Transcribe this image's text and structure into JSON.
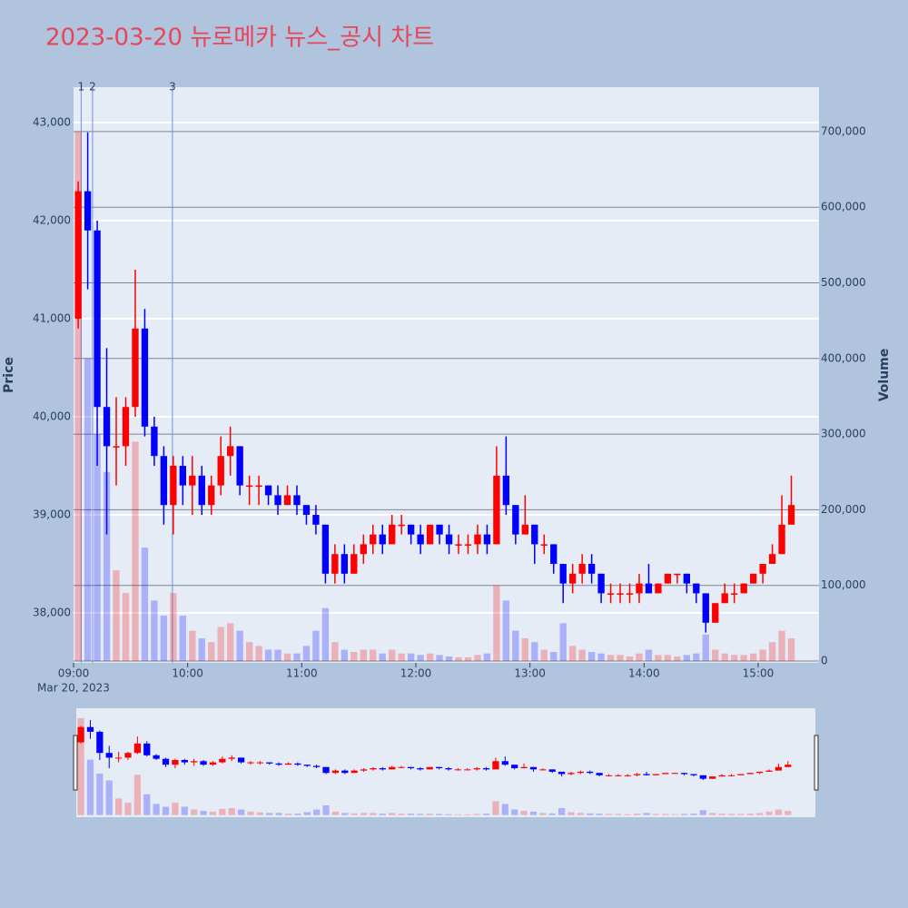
{
  "chart_data": {
    "type": "candlestick",
    "title": "2023-03-20 뉴로메카 뉴스_공시 차트",
    "y_title": "Price",
    "y2_title": "Volume",
    "x": [
      "09:00",
      "09:05",
      "09:10",
      "09:15",
      "09:20",
      "09:25",
      "09:30",
      "09:35",
      "09:40",
      "09:45",
      "09:50",
      "09:55",
      "10:00",
      "10:05",
      "10:10",
      "10:15",
      "10:20",
      "10:25",
      "10:30",
      "10:35",
      "10:40",
      "10:45",
      "10:50",
      "10:55",
      "11:00",
      "11:05",
      "11:10",
      "11:15",
      "11:20",
      "11:25",
      "11:30",
      "11:35",
      "11:40",
      "11:45",
      "11:50",
      "11:55",
      "12:00",
      "12:05",
      "12:10",
      "12:15",
      "12:20",
      "12:25",
      "12:30",
      "12:35",
      "12:40",
      "12:45",
      "12:50",
      "12:55",
      "13:00",
      "13:05",
      "13:10",
      "13:15",
      "13:20",
      "13:25",
      "13:30",
      "13:35",
      "13:40",
      "13:45",
      "13:50",
      "13:55",
      "14:00",
      "14:05",
      "14:10",
      "14:15",
      "14:20",
      "14:25",
      "14:30",
      "14:35",
      "14:40",
      "14:45",
      "14:50",
      "14:55",
      "15:00",
      "15:05",
      "15:10",
      "15:15"
    ],
    "open": [
      41000,
      42300,
      41900,
      40100,
      39700,
      39700,
      40100,
      40900,
      39900,
      39600,
      39100,
      39500,
      39300,
      39400,
      39100,
      39300,
      39600,
      39700,
      39300,
      39300,
      39300,
      39200,
      39100,
      39200,
      39100,
      39000,
      38900,
      38400,
      38600,
      38400,
      38600,
      38700,
      38800,
      38700,
      38900,
      38900,
      38800,
      38700,
      38900,
      38800,
      38700,
      38700,
      38700,
      38800,
      38700,
      39400,
      39100,
      38800,
      38900,
      38700,
      38700,
      38500,
      38300,
      38400,
      38500,
      38400,
      38200,
      38200,
      38200,
      38200,
      38300,
      38200,
      38300,
      38400,
      38400,
      38300,
      38200,
      37900,
      38100,
      38200,
      38200,
      38300,
      38400,
      38500,
      38600,
      38900
    ],
    "high": [
      42400,
      42900,
      42000,
      40700,
      40200,
      40200,
      41500,
      41100,
      40000,
      39700,
      39600,
      39600,
      39600,
      39500,
      39400,
      39800,
      39900,
      39700,
      39400,
      39400,
      39300,
      39300,
      39300,
      39300,
      39100,
      39100,
      38900,
      38700,
      38700,
      38700,
      38800,
      38900,
      38900,
      39000,
      39000,
      38900,
      38900,
      38900,
      38900,
      38900,
      38800,
      38800,
      38900,
      38900,
      39700,
      39800,
      39100,
      39200,
      38900,
      38800,
      38700,
      38500,
      38500,
      38600,
      38600,
      38400,
      38300,
      38300,
      38300,
      38400,
      38500,
      38300,
      38400,
      38400,
      38400,
      38300,
      38200,
      38100,
      38300,
      38300,
      38300,
      38400,
      38500,
      38700,
      39200,
      39400
    ],
    "low": [
      40900,
      41300,
      39500,
      38800,
      39300,
      39500,
      40000,
      39800,
      39500,
      38900,
      38800,
      39100,
      39000,
      39000,
      39000,
      39200,
      39400,
      39200,
      39100,
      39100,
      39100,
      39000,
      39100,
      39000,
      38900,
      38800,
      38300,
      38300,
      38300,
      38400,
      38500,
      38600,
      38600,
      38700,
      38800,
      38700,
      38600,
      38700,
      38700,
      38600,
      38600,
      38600,
      38600,
      38600,
      38700,
      39000,
      38700,
      38800,
      38500,
      38600,
      38400,
      38100,
      38200,
      38300,
      38300,
      38100,
      38100,
      38100,
      38100,
      38100,
      38200,
      38200,
      38300,
      38300,
      38200,
      38100,
      37800,
      37900,
      38100,
      38100,
      38200,
      38300,
      38300,
      38500,
      38600,
      38900
    ],
    "close": [
      42300,
      41900,
      40100,
      39700,
      39700,
      40100,
      40900,
      39900,
      39600,
      39100,
      39500,
      39300,
      39400,
      39100,
      39300,
      39600,
      39700,
      39300,
      39300,
      39300,
      39200,
      39100,
      39200,
      39100,
      39000,
      38900,
      38400,
      38600,
      38400,
      38600,
      38700,
      38800,
      38700,
      38900,
      38900,
      38800,
      38700,
      38900,
      38800,
      38700,
      38700,
      38700,
      38800,
      38700,
      39400,
      39100,
      38800,
      38900,
      38700,
      38700,
      38500,
      38300,
      38400,
      38500,
      38400,
      38200,
      38200,
      38200,
      38200,
      38300,
      38200,
      38300,
      38400,
      38400,
      38300,
      38200,
      37900,
      38100,
      38200,
      38200,
      38300,
      38400,
      38500,
      38600,
      38900,
      39100
    ],
    "volume": [
      700000,
      400000,
      300000,
      250000,
      120000,
      90000,
      290000,
      150000,
      80000,
      60000,
      90000,
      60000,
      40000,
      30000,
      25000,
      45000,
      50000,
      40000,
      25000,
      20000,
      15000,
      15000,
      10000,
      10000,
      20000,
      40000,
      70000,
      25000,
      15000,
      12000,
      15000,
      15000,
      10000,
      15000,
      10000,
      10000,
      8000,
      10000,
      8000,
      6000,
      5000,
      5000,
      8000,
      10000,
      100000,
      80000,
      40000,
      30000,
      25000,
      15000,
      12000,
      50000,
      20000,
      15000,
      12000,
      10000,
      8000,
      8000,
      6000,
      10000,
      15000,
      8000,
      8000,
      6000,
      8000,
      10000,
      35000,
      15000,
      10000,
      8000,
      8000,
      10000,
      15000,
      25000,
      40000,
      30000
    ],
    "increasing_color": "#ff0000",
    "decreasing_color": "#0000ff",
    "xlim": [
      "09:00",
      "15:32"
    ],
    "xticks": [
      "09:00",
      "10:00",
      "11:00",
      "12:00",
      "13:00",
      "14:00",
      "15:00"
    ],
    "x_date_label": "Mar 20, 2023",
    "ylim": [
      37491,
      43361
    ],
    "yticks": [
      {
        "value": 38000,
        "label": "38,000"
      },
      {
        "value": 39000,
        "label": "39,000"
      },
      {
        "value": 40000,
        "label": "40,000"
      },
      {
        "value": 41000,
        "label": "41,000"
      },
      {
        "value": 42000,
        "label": "42,000"
      },
      {
        "value": 43000,
        "label": "43,000"
      }
    ],
    "y2lim": [
      -2400,
      758700
    ],
    "y2ticks": [
      0,
      {
        "value": 100000,
        "label": "100,000"
      },
      {
        "value": 200000,
        "label": "200,000"
      },
      {
        "value": 300000,
        "label": "300,000"
      },
      {
        "value": 400000,
        "label": "400,000"
      },
      {
        "value": 500000,
        "label": "500,000"
      },
      {
        "value": 600000,
        "label": "600,000"
      },
      {
        "value": 700000,
        "label": "700,000"
      }
    ],
    "annotations": [
      {
        "x": "09:04",
        "label": "1"
      },
      {
        "x": "09:10",
        "label": "2"
      },
      {
        "x": "09:52",
        "label": "3"
      }
    ],
    "grid": true
  }
}
